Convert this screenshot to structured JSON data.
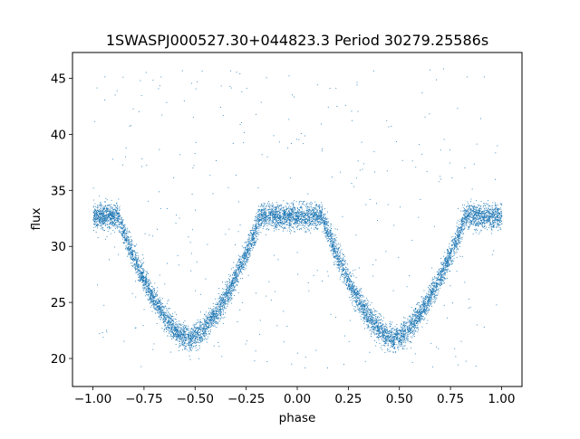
{
  "chart_data": {
    "type": "scatter",
    "title": "1SWASPJ000527.30+044823.3 Period 30279.25586s",
    "xlabel": "phase",
    "ylabel": "flux",
    "xlim": [
      -1.1,
      1.1
    ],
    "ylim": [
      17.5,
      47.3
    ],
    "x_ticks": [
      -1.0,
      -0.75,
      -0.5,
      -0.25,
      0.0,
      0.25,
      0.5,
      0.75,
      1.0
    ],
    "x_tick_labels": [
      "−1.00",
      "−0.75",
      "−0.50",
      "−0.25",
      "0.00",
      "0.25",
      "0.50",
      "0.75",
      "1.00"
    ],
    "y_ticks": [
      20,
      25,
      30,
      35,
      40,
      45
    ],
    "y_tick_labels": [
      "20",
      "25",
      "30",
      "35",
      "40",
      "45"
    ],
    "grid": false,
    "marker_color": "#1f77b4",
    "series": [
      {
        "phase_range": [
          -1.0,
          1.0
        ],
        "baseline_flux": 32.7,
        "baseline_scatter": 0.9,
        "eclipse_minima": [
          {
            "phase": -0.53,
            "flux": 21.8,
            "ingress_phase": -0.88,
            "egress_phase": -0.18
          },
          {
            "phase": 0.47,
            "flux": 21.8,
            "ingress_phase": 0.12,
            "egress_phase": 0.82
          }
        ],
        "outlier_range": [
          19,
          46
        ]
      }
    ]
  }
}
